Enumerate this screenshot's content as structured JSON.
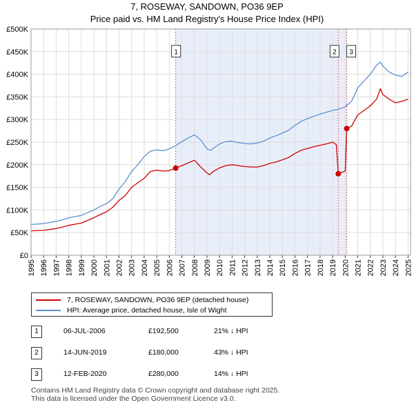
{
  "header": {
    "title": "7, ROSEWAY, SANDOWN, PO36 9EP",
    "subtitle": "Price paid vs. HM Land Registry's House Price Index (HPI)"
  },
  "colors": {
    "price_line": "#cc0000",
    "hpi_line": "#5b8fd0",
    "shade": "#e8eef9",
    "marker_dash": "#e06060",
    "grid": "#dddddd"
  },
  "chart_data": {
    "type": "line",
    "title": "Price paid vs. HM Land Registry's House Price Index (HPI)",
    "xlim": [
      1995,
      2025.2
    ],
    "ylim": [
      0,
      500000
    ],
    "y_ticks": [
      0,
      50000,
      100000,
      150000,
      200000,
      250000,
      300000,
      350000,
      400000,
      450000,
      500000
    ],
    "y_tick_labels": [
      "£0",
      "£50K",
      "£100K",
      "£150K",
      "£200K",
      "£250K",
      "£300K",
      "£350K",
      "£400K",
      "£450K",
      "£500K"
    ],
    "x_ticks": [
      1995,
      1996,
      1997,
      1998,
      1999,
      2000,
      2001,
      2002,
      2003,
      2004,
      2005,
      2006,
      2007,
      2008,
      2009,
      2010,
      2011,
      2012,
      2013,
      2014,
      2015,
      2016,
      2017,
      2018,
      2019,
      2020,
      2021,
      2022,
      2023,
      2024,
      2025
    ],
    "x_tick_labels": [
      "1995",
      "1996",
      "1997",
      "1998",
      "1999",
      "2000",
      "2001",
      "2002",
      "2003",
      "2004",
      "2005",
      "2006",
      "2007",
      "2008",
      "2009",
      "2010",
      "2011",
      "2012",
      "2013",
      "2014",
      "2015",
      "2016",
      "2017",
      "2018",
      "2019",
      "2020",
      "2021",
      "2022",
      "2023",
      "2024",
      "2025"
    ],
    "shaded_range": [
      2006.51,
      2020.12
    ],
    "series": [
      {
        "name": "7, ROSEWAY, SANDOWN, PO36 9EP (detached house)",
        "x": [
          1995.0,
          1996.0,
          1997.0,
          1997.5,
          1998.0,
          1999.0,
          1999.5,
          2000.0,
          2000.5,
          2001.0,
          2001.5,
          2002.0,
          2002.5,
          2003.0,
          2003.5,
          2004.0,
          2004.5,
          2005.0,
          2005.5,
          2006.0,
          2006.51,
          2007.0,
          2007.5,
          2008.0,
          2008.5,
          2009.0,
          2009.2,
          2009.5,
          2010.0,
          2010.5,
          2011.0,
          2011.5,
          2012.0,
          2012.5,
          2013.0,
          2013.5,
          2014.0,
          2014.5,
          2015.0,
          2015.5,
          2016.0,
          2016.5,
          2017.0,
          2017.5,
          2018.0,
          2018.5,
          2019.0,
          2019.3,
          2019.45,
          2019.7,
          2020.0,
          2020.12,
          2020.5,
          2021.0,
          2021.5,
          2022.0,
          2022.5,
          2022.8,
          2023.0,
          2023.5,
          2024.0,
          2024.5,
          2025.0
        ],
        "values": [
          54000,
          55000,
          59000,
          62000,
          66000,
          71000,
          77000,
          83000,
          90000,
          96000,
          106000,
          121000,
          132000,
          150000,
          160000,
          170000,
          185000,
          188000,
          186000,
          187000,
          192500,
          198000,
          204000,
          210000,
          195000,
          182000,
          178000,
          185000,
          193000,
          198000,
          200000,
          198000,
          196000,
          195000,
          195000,
          198000,
          203000,
          206000,
          211000,
          216000,
          225000,
          232000,
          236000,
          240000,
          243000,
          246000,
          250000,
          244000,
          180000,
          183000,
          186000,
          280000,
          285000,
          310000,
          320000,
          330000,
          345000,
          368000,
          355000,
          345000,
          337000,
          340000,
          345000
        ]
      },
      {
        "name": "HPI: Average price, detached house, Isle of Wight",
        "x": [
          1995.0,
          1996.0,
          1997.0,
          1997.5,
          1998.0,
          1999.0,
          1999.5,
          2000.0,
          2000.5,
          2001.0,
          2001.5,
          2002.0,
          2002.5,
          2003.0,
          2003.5,
          2004.0,
          2004.5,
          2005.0,
          2005.5,
          2006.0,
          2006.5,
          2007.0,
          2007.5,
          2008.0,
          2008.5,
          2009.0,
          2009.3,
          2009.6,
          2010.0,
          2010.5,
          2011.0,
          2011.5,
          2012.0,
          2012.5,
          2013.0,
          2013.5,
          2014.0,
          2014.5,
          2015.0,
          2015.5,
          2016.0,
          2016.5,
          2017.0,
          2017.5,
          2018.0,
          2018.5,
          2019.0,
          2019.5,
          2020.0,
          2020.5,
          2021.0,
          2021.5,
          2022.0,
          2022.5,
          2022.8,
          2023.0,
          2023.5,
          2024.0,
          2024.5,
          2025.0
        ],
        "values": [
          68000,
          70000,
          75000,
          78000,
          83000,
          88000,
          94000,
          100000,
          108000,
          114000,
          125000,
          146000,
          163000,
          185000,
          200000,
          218000,
          230000,
          233000,
          231000,
          235000,
          242000,
          251000,
          259000,
          266000,
          255000,
          235000,
          232000,
          238000,
          246000,
          251000,
          252000,
          249000,
          247000,
          246000,
          248000,
          252000,
          259000,
          264000,
          270000,
          276000,
          287000,
          296000,
          302000,
          307000,
          312000,
          316000,
          320000,
          323000,
          328000,
          340000,
          370000,
          385000,
          400000,
          420000,
          427000,
          418000,
          405000,
          398000,
          395000,
          405000
        ]
      }
    ],
    "transactions": [
      {
        "label": "1",
        "x": 2006.51,
        "price": 192500
      },
      {
        "label": "2",
        "x": 2019.45,
        "price": 180000
      },
      {
        "label": "3",
        "x": 2020.12,
        "price": 280000
      }
    ]
  },
  "legend": {
    "price_label": "7, ROSEWAY, SANDOWN, PO36 9EP (detached house)",
    "hpi_label": "HPI: Average price, detached house, Isle of Wight"
  },
  "table": {
    "rows": [
      {
        "num": "1",
        "date": "06-JUL-2006",
        "price": "£192,500",
        "hpi": "21% ↓ HPI"
      },
      {
        "num": "2",
        "date": "14-JUN-2019",
        "price": "£180,000",
        "hpi": "43% ↓ HPI"
      },
      {
        "num": "3",
        "date": "12-FEB-2020",
        "price": "£280,000",
        "hpi": "14% ↓ HPI"
      }
    ]
  },
  "footer": {
    "line1": "Contains HM Land Registry data © Crown copyright and database right 2025.",
    "line2": "This data is licensed under the Open Government Licence v3.0."
  }
}
